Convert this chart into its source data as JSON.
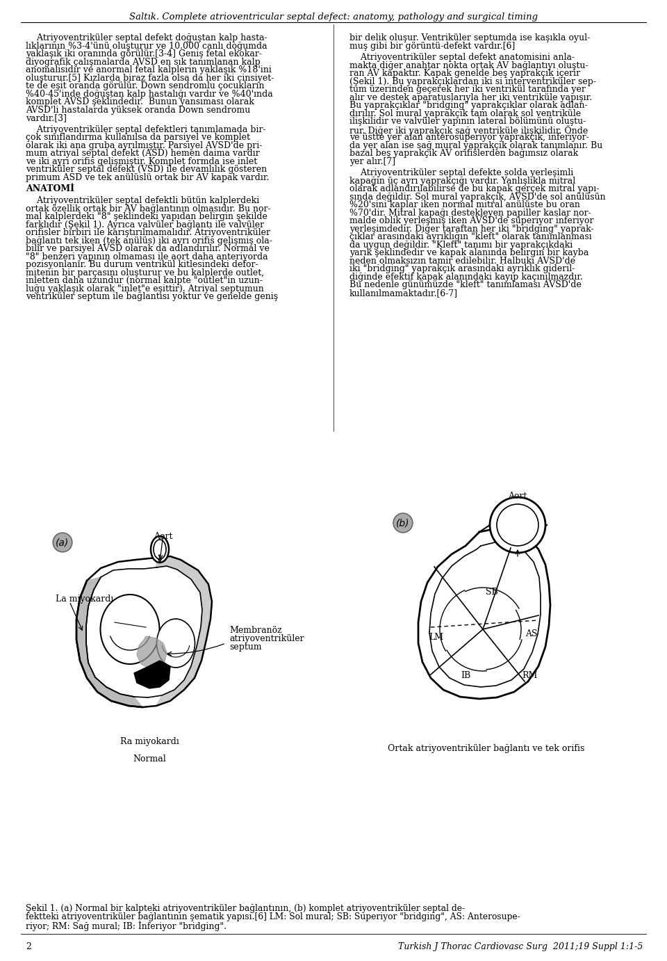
{
  "header": "Saltık. Complete atrioventricular septal defect: anatomy, pathology and surgical timing",
  "page_number": "2",
  "journal": "Turkish J Thorac Cardiovasc Surg  2011;19 Suppl 1:1-5",
  "figure_a_label": "(a)",
  "figure_b_label": "(b)",
  "figure_a_title": "Normal",
  "figure_b_title": "Ortak atriyoventriküler bağlantı ve tek orifis",
  "figure_caption_line1": "Şekil 1. (a) Normal bir kalpteki atriyoventriküler bağlantının, (b) komplet atriyoventriküler septal de-",
  "figure_caption_line2": "fektteki atriyoventriküler bağlantının şematik yapısı.[6] LM: Sol mural; SB: Superiyor \"bridging\", AS: Anterosupe-",
  "figure_caption_line3": "riyor; RM: Sağ mural; IB: İnferiyor \"bridging\".",
  "aort_label_a": "Aort",
  "la_miyokardi_label": "La miyokardı",
  "membranoz_label_1": "Membranöz",
  "membranoz_label_2": "atriyoventriküler",
  "membranoz_label_3": "septum",
  "ra_miyokardi_label": "Ra miyokardı",
  "aort_label_b": "Aort",
  "sb_label": "SB",
  "lm_label": "LM",
  "as_label": "AS",
  "ib_label": "IB",
  "rm_label": "RM",
  "left_col_lines": [
    "    Atriyoventriküler septal defekt doğuştan kalp hasta-",
    "lıklarının %3-4'ünü oluşturur ve 10.000 canlı doğumda",
    "yaklaşık iki oranında görülür.[3-4] Geniş fetal ekokar-",
    "diyografik çalışmalarda AVSD en sık tanımlanan kalp",
    "anomalisidir ve anormal fetal kalplerin yaklaşık %18'ini",
    "oluşturur.[5] Kızlarda biraz fazla olsa da her iki cinsiyet-",
    "te de eşit oranda görülür. Down sendromlu çocukların",
    "%40-45'inde doğuştan kalp hastalığı vardır ve %40'ında",
    "komplet AVSD şeklindedir.  Bunun yansıması olarak",
    "AVSD'li hastalarda yüksek oranda Down sendromu",
    "vardır.[3]",
    "",
    "    Atriyoventriküler septal defektleri tanımlamada bir-",
    "çok sınıflandırma kullanılsa da parsiyel ve komplet",
    "olarak iki ana gruba ayrılmıştır. Parsiyel AVSD'de pri-",
    "mum atriyal septal defekt (ASD) hemen daima vardır",
    "ve iki ayrı orifis gelişmiştir. Komplet formda ise inlet",
    "ventriküler septal defekt (VSD) ile devamlılık gösteren",
    "primum ASD ve tek anülüslü ortak bir AV kapak vardır.",
    "",
    "ANATOMİ",
    "",
    "    Atriyoventriküler septal defektli bütün kalplerdeki",
    "ortak özellik ortak bir AV bağlantının olmasıdır. Bu nor-",
    "mal kalplerdeki \"8\" şeklindeki yapıdan belirgin şekilde",
    "farklıdır (Şekil 1). Ayrıca valvüler bağlantı ile valvüler",
    "orifisler birbiri ile karıştırılmamalıdır. Atriyoventriküler",
    "bağlantı tek iken (tek anülüs) iki ayrı orifis gelişmiş ola-",
    "bilir ve parsiyel AVSD olarak da adlandırılır. Normal ve",
    "\"8\" benzeri yapının olmaması ile aort daha anteriyorda",
    "pozisyonlanır. Bu durum ventrikül kitlesindeki defor-",
    "mitenin bir parçasını oluşturur ve bu kalplerde outlet,",
    "inletten daha uzundur (normal kalpte \"outlet\"in uzun-",
    "luğu yaklaşık olarak \"inlet\"e eşittir). Atriyal septumun",
    "ventriküler septum ile bağlantısı yoktur ve genelde geniş"
  ],
  "right_col_lines": [
    "bir delik oluşur. Ventriküler septumda ise kaşıkla oyul-",
    "muş gibi bir görüntü-defekt vardır.[6]",
    "",
    "    Atriyoventriküler septal defekt anatomisini anla-",
    "makta diğer anahtar nokta ortak AV bağlantıyı oluştu-",
    "ran AV kapaktır. Kapak genelde beş yaprakçık içerir",
    "(Şekil 1). Bu yaprakçıklardan iki si interventriküler sep-",
    "tum üzerinden geçerek her iki ventrikül tarafında yer",
    "alır ve destek aparatuslarıyla her iki ventriküle yapışır.",
    "Bu yaprakçıklar \"bridging\" yaprakçıklar olarak adlan-",
    "dırılır. Sol mural yaprakçık tam olarak sol ventriküle",
    "ilişkilidir ve valvüler yapının lateral bölümünü oluştu-",
    "rur. Diğer iki yaprakçık sağ ventriküle ilişkilidir. Önde",
    "ve üstte yer alan anterosüperiyor yaprakçık, inferiyor-",
    "da yer alan ise sağ mural yaprakçık olarak tanımlanır. Bu",
    "bazal beş yaprakçık AV orifislerden bağımsız olarak",
    "yer alır.[7]",
    "",
    "    Atriyoventriküler septal defekte solda yerleşimli",
    "kapağın üç ayrı yaprakçığı vardır. Yanlışlıkla mitral",
    "olarak adlandırılabilirse de bu kapak gerçek mitral yapı-",
    "sında değildir. Sol mural yaprakçık, AVSD'de sol anülüsün",
    "%20'sini kaplar iken normal mitral anülüste bu oran",
    "%70'dir. Mitral kapağı destekleyen papiller kaslar nor-",
    "malde oblik yerleşmiş iken AVSD'de süperiyor inferiyor",
    "yerleşimdedir. Diğer taraftan her iki \"bridging\" yaprak-",
    "çıklar arasındaki ayrıklığın \"kleft\" olarak tanımlanması",
    "da uygun değildir. \"Kleft\" tanımı bir yaprakçıkdaki",
    "yarık şeklindedir ve kapak alanında belirgin bir kayba",
    "neden olmaksızın tamir edilebilir. Halbuki AVSD'de",
    "iki \"bridging\" yaprakçık arasındaki ayrıklık gideril-",
    "diğinde efektif kapak alanındaki kayıp kaçınılmazdır.",
    "Bu nedenle günümüzde \"kleft\" tanımlaması AVSD'de",
    "kullanılmamaktadır.[6-7]"
  ],
  "anatomy_heading_line_idx": 20,
  "bg_color": "#ffffff",
  "text_color": "#000000"
}
